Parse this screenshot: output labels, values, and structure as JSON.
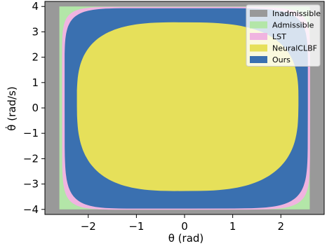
{
  "chart_data": {
    "type": "area",
    "title": "",
    "xlabel": "θ (rad)",
    "ylabel": "θ̇ (rad/s)",
    "xlim": [
      -2.9,
      2.9
    ],
    "ylim": [
      -4.2,
      4.2
    ],
    "x_ticks": [
      -2,
      -1,
      0,
      1,
      2
    ],
    "y_ticks": [
      -4,
      -3,
      -2,
      -1,
      0,
      1,
      2,
      3,
      4
    ],
    "x_tick_labels": [
      "−2",
      "−1",
      "0",
      "1",
      "2"
    ],
    "y_tick_labels": [
      "−4",
      "−3",
      "−2",
      "−1",
      "0",
      "1",
      "2",
      "3",
      "4"
    ],
    "grid": false,
    "legend_position": "top-right",
    "series": [
      {
        "name": "Inadmissible",
        "color": "#999999",
        "region": "whole state space outside admissible set"
      },
      {
        "name": "Admissible",
        "color": "#b3e6a8",
        "region_x": [
          -2.6,
          2.6
        ],
        "region_y": [
          -4.0,
          4.0
        ]
      },
      {
        "name": "LST",
        "color": "#f0b4e0",
        "approx_extent_x": [
          -2.6,
          2.6
        ],
        "approx_extent_y": [
          -4.0,
          4.0
        ]
      },
      {
        "name": "NeuralCLBF",
        "color": "#e6e05a",
        "approx_extent_x": [
          -2.25,
          2.35
        ],
        "approx_extent_y": [
          -3.25,
          3.4
        ]
      },
      {
        "name": "Ours",
        "color": "#3a70b0",
        "approx_extent_x": [
          -2.5,
          2.55
        ],
        "approx_extent_y": [
          -3.95,
          3.95
        ]
      }
    ]
  }
}
